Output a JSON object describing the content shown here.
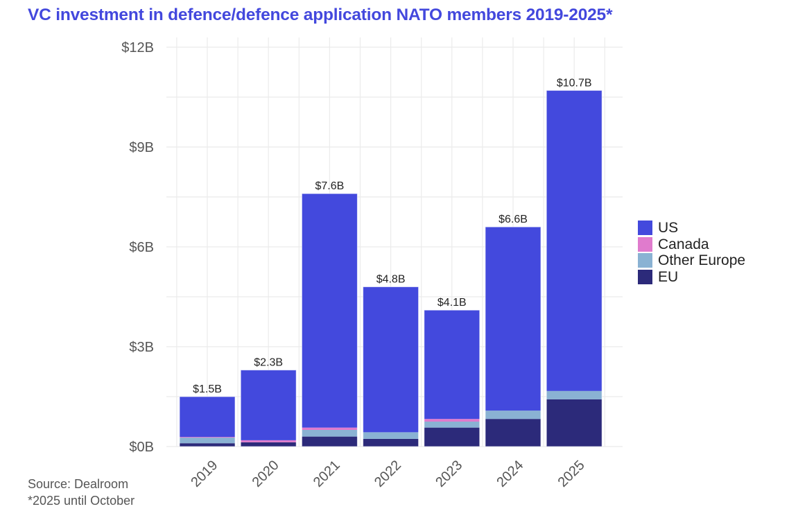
{
  "title": "VC investment in defence/defence application NATO members 2019-2025*",
  "footnotes": {
    "source": "Source: Dealroom",
    "note": "*2025 until October"
  },
  "colors": {
    "US": "#4349dd",
    "Canada": "#e07bcd",
    "Other Europe": "#8ab2d3",
    "EU": "#2c2a7a",
    "grid": "#ebebeb",
    "title": "#4348dd"
  },
  "legend": [
    {
      "name": "US",
      "color": "#4349dd"
    },
    {
      "name": "Canada",
      "color": "#e07bcd"
    },
    {
      "name": "Other Europe",
      "color": "#8ab2d3"
    },
    {
      "name": "EU",
      "color": "#2c2a7a"
    }
  ],
  "chart_data": {
    "type": "bar",
    "stacked": true,
    "title": "VC investment in defence/defence application NATO members 2019-2025*",
    "xlabel": "",
    "ylabel": "",
    "categories": [
      "2019",
      "2020",
      "2021",
      "2022",
      "2023",
      "2024",
      "2025"
    ],
    "series": [
      {
        "name": "EU",
        "values": [
          0.1,
          0.13,
          0.3,
          0.23,
          0.57,
          0.83,
          1.42
        ]
      },
      {
        "name": "Other Europe",
        "values": [
          0.17,
          0.0,
          0.2,
          0.2,
          0.18,
          0.25,
          0.25
        ]
      },
      {
        "name": "Canada",
        "values": [
          0.02,
          0.06,
          0.07,
          0.0,
          0.08,
          0.0,
          0.0
        ]
      },
      {
        "name": "US",
        "values": [
          1.21,
          2.11,
          7.03,
          4.37,
          3.27,
          5.52,
          9.03
        ]
      }
    ],
    "totals": [
      1.5,
      2.3,
      7.6,
      4.8,
      4.1,
      6.6,
      10.7
    ],
    "total_labels": [
      "$1.5B",
      "$2.3B",
      "$7.6B",
      "$4.8B",
      "$4.1B",
      "$6.6B",
      "$10.7B"
    ],
    "units": "USD billions",
    "ylim": [
      0,
      12
    ],
    "yticks": [
      0,
      3,
      6,
      9,
      12
    ],
    "ytick_labels": [
      "$0B",
      "$3B",
      "$6B",
      "$9B",
      "$12B"
    ],
    "grid": true,
    "legend_position": "right"
  }
}
